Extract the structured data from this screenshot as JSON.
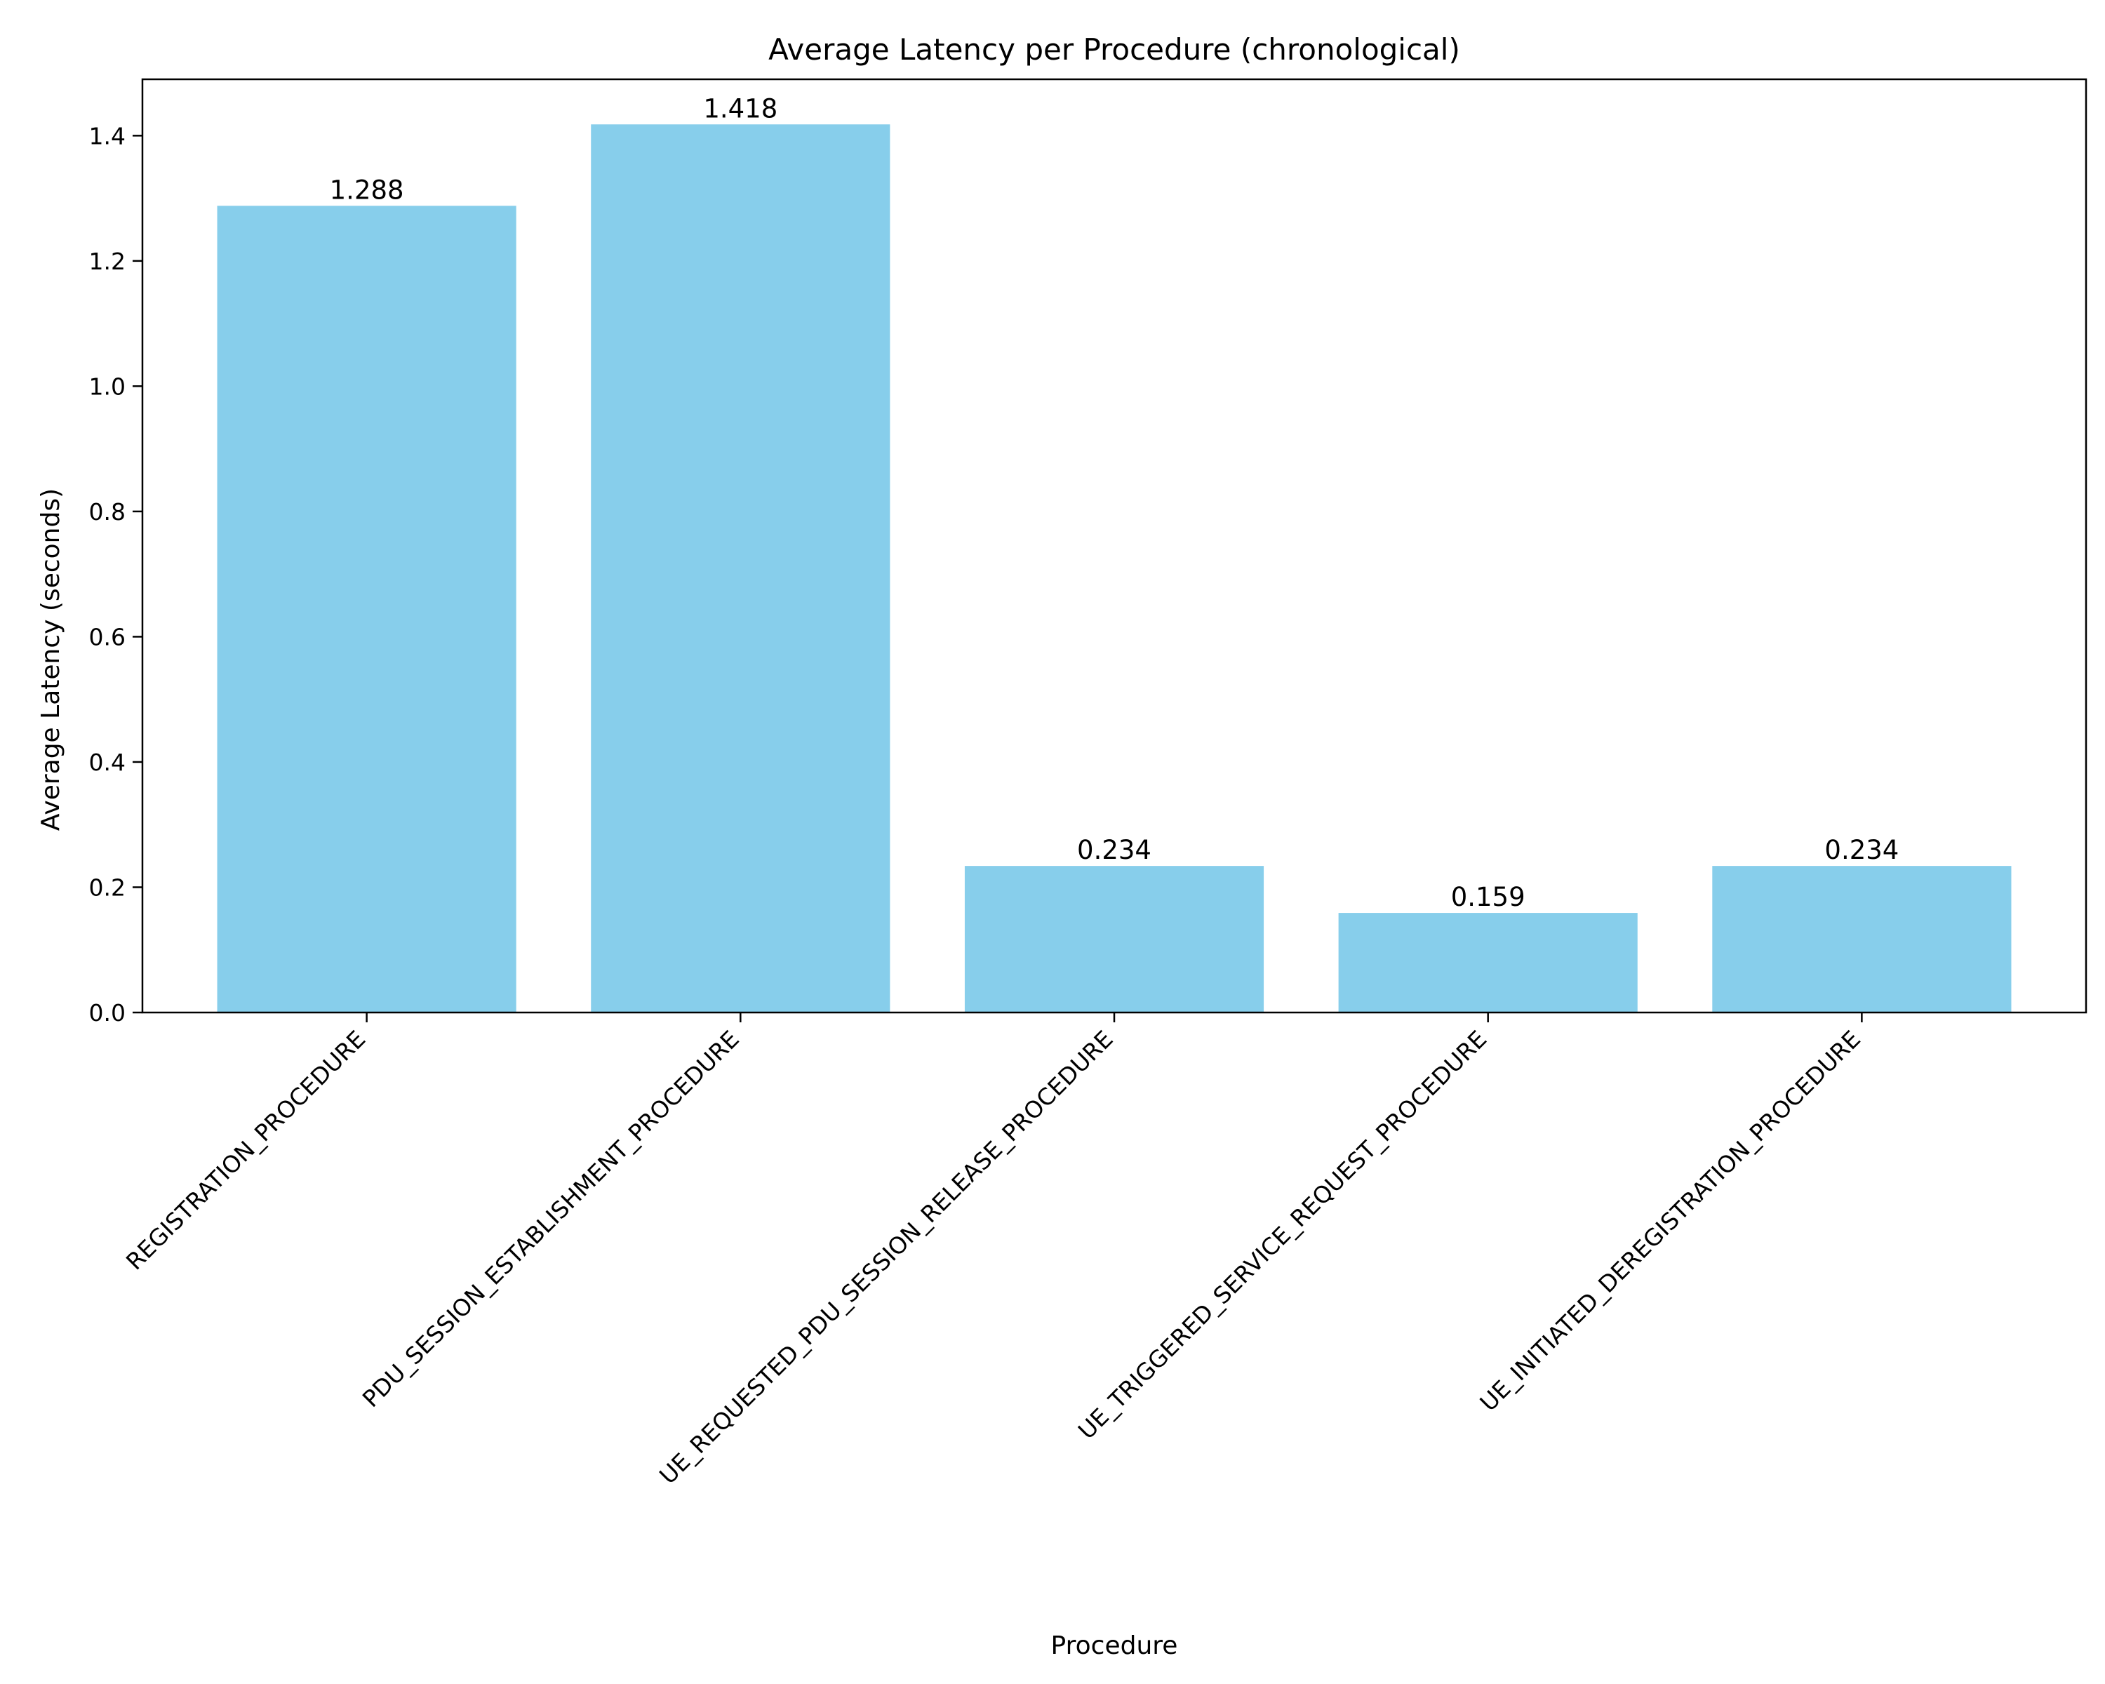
{
  "chart_data": {
    "type": "bar",
    "title": "Average Latency per Procedure (chronological)",
    "xlabel": "Procedure",
    "ylabel": "Average Latency (seconds)",
    "categories": [
      "REGISTRATION_PROCEDURE",
      "PDU_SESSION_ESTABLISHMENT_PROCEDURE",
      "UE_REQUESTED_PDU_SESSION_RELEASE_PROCEDURE",
      "UE_TRIGGERED_SERVICE_REQUEST_PROCEDURE",
      "UE_INITIATED_DEREGISTRATION_PROCEDURE"
    ],
    "values": [
      1.288,
      1.418,
      0.234,
      0.159,
      0.234
    ],
    "value_labels": [
      "1.288",
      "1.418",
      "0.234",
      "0.159",
      "0.234"
    ],
    "ylim": [
      0,
      1.49
    ],
    "yticks": [
      0.0,
      0.2,
      0.4,
      0.6,
      0.8,
      1.0,
      1.2,
      1.4
    ],
    "ytick_labels": [
      "0.0",
      "0.2",
      "0.4",
      "0.6",
      "0.8",
      "1.0",
      "1.2",
      "1.4"
    ],
    "grid": false,
    "colors": {
      "bar": "#87ceeb",
      "axis": "#000000"
    }
  }
}
